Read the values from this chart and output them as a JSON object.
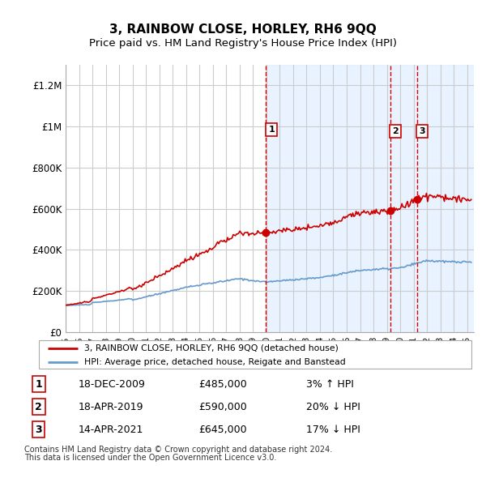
{
  "title": "3, RAINBOW CLOSE, HORLEY, RH6 9QQ",
  "subtitle": "Price paid vs. HM Land Registry's House Price Index (HPI)",
  "ylabel_ticks": [
    "£0",
    "£200K",
    "£400K",
    "£600K",
    "£800K",
    "£1M",
    "£1.2M"
  ],
  "ytick_values": [
    0,
    200000,
    400000,
    600000,
    800000,
    1000000,
    1200000
  ],
  "ylim": [
    0,
    1300000
  ],
  "xlim_start": 1995.0,
  "xlim_end": 2025.5,
  "sale_dates": [
    "18-DEC-2009",
    "18-APR-2019",
    "14-APR-2021"
  ],
  "sale_prices": [
    485000,
    590000,
    645000
  ],
  "sale_years": [
    2009.96,
    2019.29,
    2021.29
  ],
  "sale_labels": [
    "1",
    "2",
    "3"
  ],
  "sale_hpi_pct": [
    "3% ↑ HPI",
    "20% ↓ HPI",
    "17% ↓ HPI"
  ],
  "vline_color": "#dd0000",
  "hpi_line_color": "#6699cc",
  "price_line_color": "#cc0000",
  "bg_shaded_color": "#ddeeff",
  "legend_house": "3, RAINBOW CLOSE, HORLEY, RH6 9QQ (detached house)",
  "legend_hpi": "HPI: Average price, detached house, Reigate and Banstead",
  "footer_line1": "Contains HM Land Registry data © Crown copyright and database right 2024.",
  "footer_line2": "This data is licensed under the Open Government Licence v3.0.",
  "title_fontsize": 11,
  "subtitle_fontsize": 9.5
}
